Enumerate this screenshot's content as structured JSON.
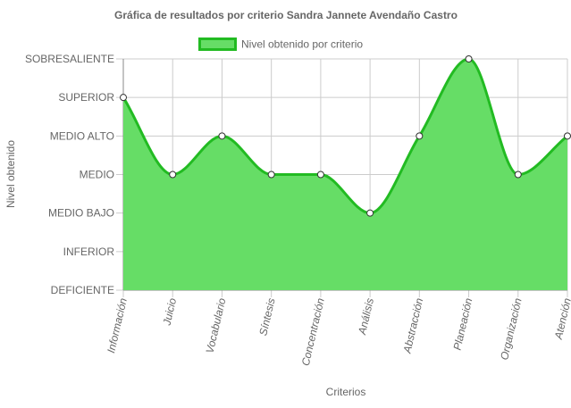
{
  "chart_data": {
    "type": "area",
    "title": "Gráfica de resultados por criterio Sandra Jannete Avendaño Castro",
    "xlabel": "Criterios",
    "ylabel": "Nivel obtenido",
    "y_levels": [
      "DEFICIENTE",
      "INFERIOR",
      "MEDIO BAJO",
      "MEDIO",
      "MEDIO ALTO",
      "SUPERIOR",
      "SOBRESALIENTE"
    ],
    "categories": [
      "Información",
      "Juicio",
      "Vocabulario",
      "Síntesis",
      "Concentración",
      "Análisis",
      "Abstracción",
      "Planeación",
      "Organización",
      "Atención"
    ],
    "series": [
      {
        "name": "Nivel obtenido por criterio",
        "values": [
          "SUPERIOR",
          "MEDIO",
          "MEDIO ALTO",
          "MEDIO",
          "MEDIO",
          "MEDIO BAJO",
          "MEDIO ALTO",
          "SOBRESALIENTE",
          "MEDIO",
          "MEDIO ALTO"
        ]
      }
    ],
    "grid": true,
    "legend": "top",
    "colors": {
      "fill": "#66dd66",
      "stroke": "#22bb22",
      "grid": "#cccccc",
      "text": "#666666"
    }
  }
}
